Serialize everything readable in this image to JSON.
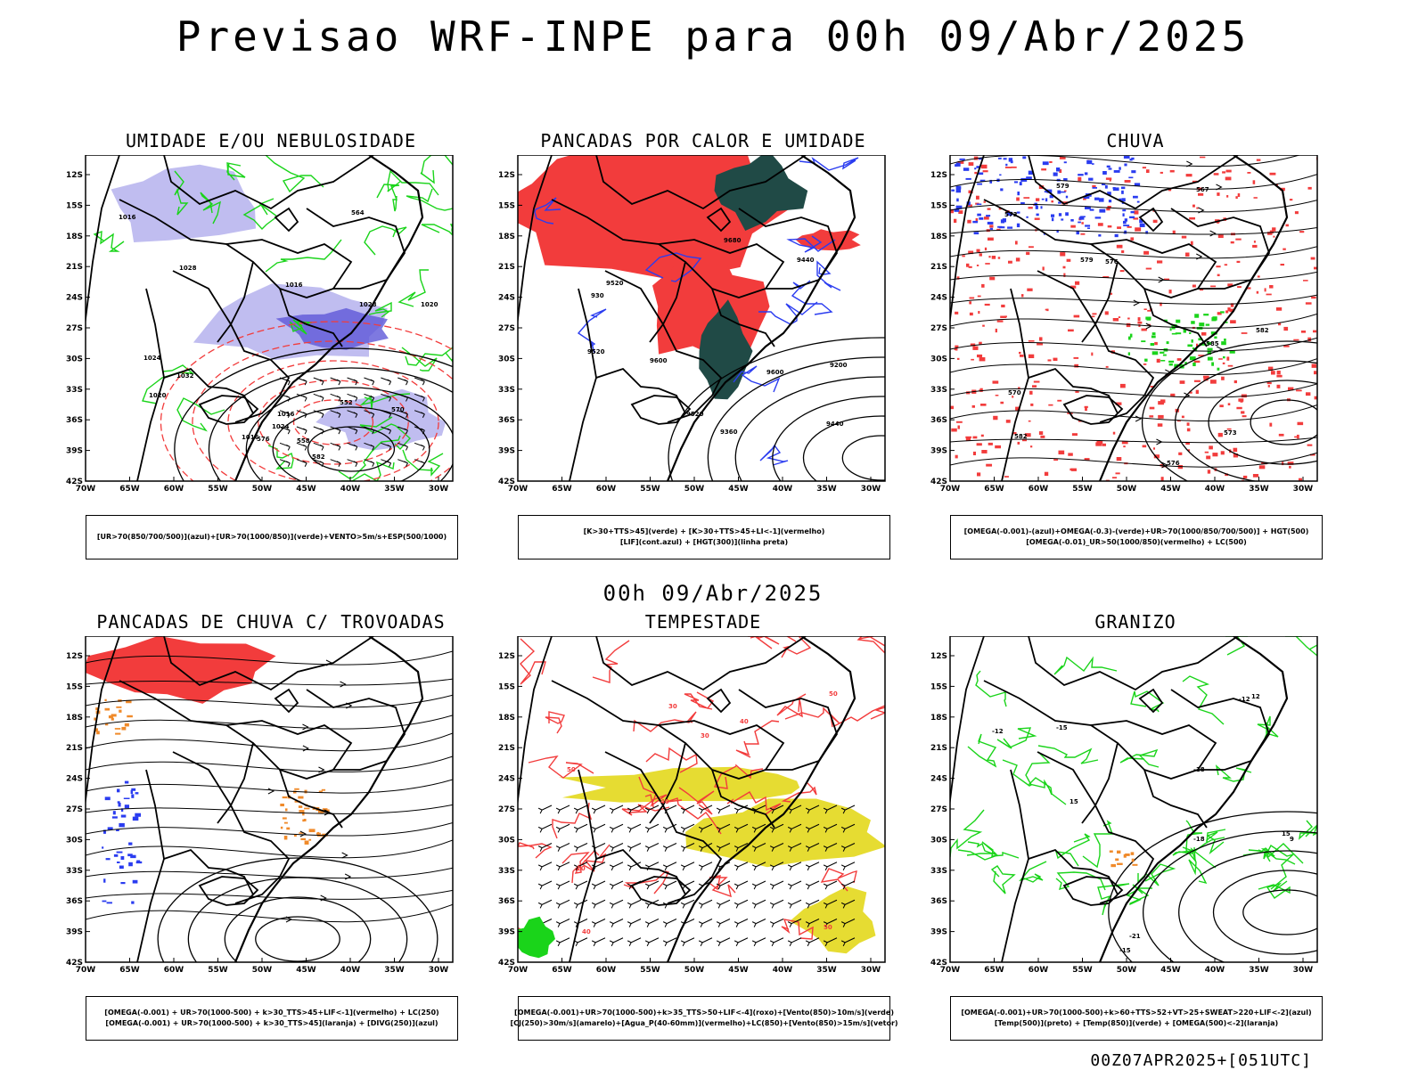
{
  "title": "Previsao WRF-INPE  para 00h 09/Abr/2025",
  "mid_title": "00h 09/Abr/2025",
  "footer": "00Z07APR2025+[051UTC]",
  "colors": {
    "blue": "#2a3cf0",
    "green": "#1ad41a",
    "red": "#f23c3c",
    "orange": "#f08a2a",
    "teal": "#204a46",
    "yellow": "#e6dc32",
    "lavender": "#b9b6ee",
    "black": "#000000"
  },
  "axes": {
    "lat_labels": [
      "12S",
      "15S",
      "18S",
      "21S",
      "24S",
      "27S",
      "30S",
      "33S",
      "36S",
      "39S",
      "42S"
    ],
    "lon_labels": [
      "70W",
      "65W",
      "60W",
      "55W",
      "50W",
      "45W",
      "40W",
      "35W",
      "30W"
    ]
  },
  "panels": [
    {
      "title": "UMIDADE E/OU NEBULOSIDADE",
      "legend": [
        "[UR>70(850/700/500)](azul)+[UR>70(1000/850)](verde)+VENTO>5m/s+ESP(500/1000)"
      ],
      "contour_labels": [
        "1016",
        "1016",
        "1016",
        "1016",
        "1020",
        "1020",
        "1024",
        "1024",
        "1028",
        "1028",
        "1032",
        "570",
        "576",
        "582",
        "564",
        "558",
        "552"
      ]
    },
    {
      "title": "PANCADAS POR CALOR E UMIDADE",
      "legend": [
        "[K>30+TTS>45](verde) + [K>30+TTS>45+LI<-1](vermelho)",
        "[LIF](cont.azul) + [HGT(300)](linha preta)"
      ],
      "contour_labels": [
        "9680",
        "9600",
        "9600",
        "9520",
        "9520",
        "9520",
        "9440",
        "9440",
        "9360",
        "9200",
        "930"
      ]
    },
    {
      "title": "CHUVA",
      "legend": [
        "[OMEGA(-0.001)-(azul)+OMEGA(-0.3)-(verde)+UR>70(1000/850/700/500)] + HGT(500)",
        "[OMEGA(-0.01)_UR>50(1000/850)(vermelho) + LC(500)"
      ],
      "contour_labels": [
        "585",
        "582",
        "582",
        "579",
        "576",
        "573",
        "570",
        "567",
        "579",
        "576",
        "573"
      ]
    },
    {
      "title": "PANCADAS DE CHUVA C/ TROVOADAS",
      "legend": [
        "[OMEGA(-0.001) + UR>70(1000-500) + k>30_TTS>45+LIF<-1](vermelho) + LC(250)",
        "[OMEGA(-0.001) + UR>70(1000-500) + k>30_TTS>45](laranja) + [DIVG(250)](azul)"
      ],
      "contour_labels": []
    },
    {
      "title": "TEMPESTADE",
      "legend": [
        "[OMEGA(-0.001)+UR>70(1000-500)+k>35_TTS>50+LIF<-4](roxo)+[Vento(850)>10m/s](verde)",
        "[CJ(250)>30m/s](amarelo)+[Agua_P(40-60mm)](vermelho)+LC(850)+[Vento(850)>15m/s](vetor)"
      ],
      "contour_labels": [
        "50",
        "50",
        "50",
        "40",
        "40",
        "40",
        "30",
        "30",
        "20"
      ]
    },
    {
      "title": "GRANIZO",
      "legend": [
        "[OMEGA(-0.001)+UR>70(1000-500)+k>60+TTS>52+VT>25+SWEAT>220+LIF<-2](azul)",
        "[Temp(500)](preto) + [Temp(850)](verde) + [OMEGA(500)<-2](laranja)"
      ],
      "contour_labels": [
        "-12",
        "-15",
        "-18",
        "-21",
        "-12",
        "-15",
        "-18",
        "15",
        "12",
        "9",
        "15"
      ]
    }
  ]
}
